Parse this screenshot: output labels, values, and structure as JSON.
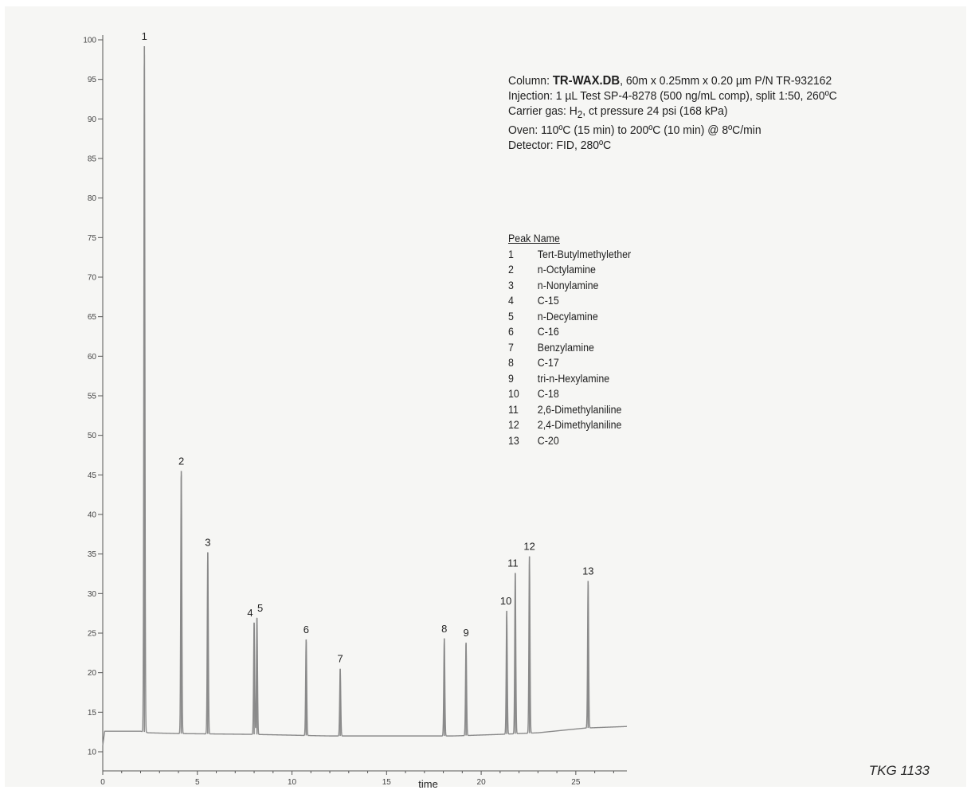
{
  "conditions": {
    "column_prefix": "Column: ",
    "column_name": "TR-WAX.DB",
    "column_rest": ", 60m x 0.25mm x 0.20 µm P/N TR-932162",
    "injection": "Injection: 1 µL Test SP-4-8278 (500 ng/mL comp), split 1:50, 260ºC",
    "carrier_prefix": "Carrier gas: H",
    "carrier_sub": "2",
    "carrier_rest": ", ct pressure 24 psi (168 kPa)",
    "oven": "Oven: 110ºC (15 min) to 200ºC (10 min) @ 8ºC/min",
    "detector": "Detector: FID, 280ºC"
  },
  "peak_table": {
    "header": "Peak Name",
    "rows": [
      {
        "num": "1",
        "name": "Tert-Butylmethylether"
      },
      {
        "num": "2",
        "name": "n-Octylamine"
      },
      {
        "num": "3",
        "name": "n-Nonylamine"
      },
      {
        "num": "4",
        "name": "C-15"
      },
      {
        "num": "5",
        "name": "n-Decylamine"
      },
      {
        "num": "6",
        "name": "C-16"
      },
      {
        "num": "7",
        "name": "Benzylamine"
      },
      {
        "num": "8",
        "name": "C-17"
      },
      {
        "num": "9",
        "name": "tri-n-Hexylamine"
      },
      {
        "num": "10",
        "name": "C-18"
      },
      {
        "num": "11",
        "name": "2,6-Dimethylaniline"
      },
      {
        "num": "12",
        "name": "2,4-Dimethylaniline"
      },
      {
        "num": "13",
        "name": "C-20"
      }
    ]
  },
  "doc_code": "TKG 1133",
  "chart_data": {
    "type": "line",
    "title": "",
    "xlabel": "time",
    "ylabel": "",
    "xlim": [
      0,
      27.7
    ],
    "ylim": [
      10,
      100
    ],
    "x_ticks": [
      "0",
      "5",
      "10",
      "15",
      "20",
      "25"
    ],
    "x_tick_values": [
      0,
      5,
      10,
      15,
      20,
      25
    ],
    "y_ticks": [
      "10",
      "15",
      "20",
      "25",
      "30",
      "35",
      "40",
      "45",
      "50",
      "55",
      "60",
      "65",
      "70",
      "75",
      "80",
      "85",
      "90",
      "95",
      "100"
    ],
    "y_tick_values": [
      10,
      15,
      20,
      25,
      30,
      35,
      40,
      45,
      50,
      55,
      60,
      65,
      70,
      75,
      80,
      85,
      90,
      95,
      100
    ],
    "grid": false,
    "baseline": [
      {
        "x": 0.0,
        "y": 10.8
      },
      {
        "x": 0.1,
        "y": 12.6
      },
      {
        "x": 2.0,
        "y": 12.6
      },
      {
        "x": 2.4,
        "y": 12.4
      },
      {
        "x": 4.0,
        "y": 12.3
      },
      {
        "x": 8.0,
        "y": 12.2
      },
      {
        "x": 12.0,
        "y": 12.0
      },
      {
        "x": 16.0,
        "y": 12.0
      },
      {
        "x": 18.5,
        "y": 12.0
      },
      {
        "x": 21.0,
        "y": 12.2
      },
      {
        "x": 23.0,
        "y": 12.4
      },
      {
        "x": 25.5,
        "y": 13.0
      },
      {
        "x": 27.7,
        "y": 13.2
      }
    ],
    "peaks": [
      {
        "label": "1",
        "rt": 2.2,
        "height": 99.2
      },
      {
        "label": "2",
        "rt": 4.15,
        "height": 45.5
      },
      {
        "label": "3",
        "rt": 5.55,
        "height": 35.2
      },
      {
        "label": "4",
        "rt": 8.0,
        "height": 26.3
      },
      {
        "label": "5",
        "rt": 8.15,
        "height": 26.9
      },
      {
        "label": "6",
        "rt": 10.75,
        "height": 24.2
      },
      {
        "label": "7",
        "rt": 12.55,
        "height": 20.5
      },
      {
        "label": "8",
        "rt": 18.05,
        "height": 24.3
      },
      {
        "label": "9",
        "rt": 19.2,
        "height": 23.8
      },
      {
        "label": "10",
        "rt": 21.35,
        "height": 27.8
      },
      {
        "label": "11",
        "rt": 21.8,
        "height": 32.6
      },
      {
        "label": "12",
        "rt": 22.55,
        "height": 34.7
      },
      {
        "label": "13",
        "rt": 25.65,
        "height": 31.6
      }
    ],
    "line_color": "#8a8a8a",
    "axis_color": "#555555"
  }
}
